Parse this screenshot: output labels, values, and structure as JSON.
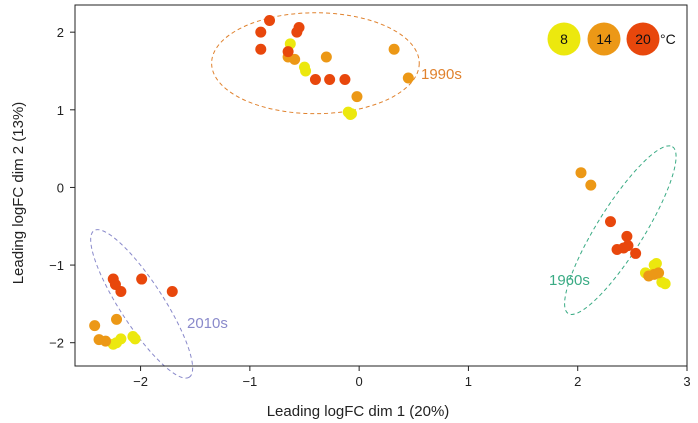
{
  "chart_data": {
    "type": "scatter",
    "xlabel": "Leading logFC dim 1 (20%)",
    "ylabel": "Leading logFC dim 2 (13%)",
    "xlim": [
      -2.6,
      3.0
    ],
    "ylim": [
      -2.3,
      2.35
    ],
    "xticks": [
      -2,
      -1,
      0,
      1,
      2,
      3
    ],
    "xtick_labels": [
      "−2",
      "−1",
      "0",
      "1",
      "2",
      "3"
    ],
    "yticks": [
      -2,
      -1,
      0,
      1,
      2
    ],
    "ytick_labels": [
      "−2",
      "−1",
      "0",
      "1",
      "2"
    ],
    "grid": false,
    "legend": {
      "placement": "top-right",
      "unit": "°C",
      "items": [
        {
          "label": "8",
          "color": "#ece80e"
        },
        {
          "label": "14",
          "color": "#ec9816"
        },
        {
          "label": "20",
          "color": "#e8470c"
        }
      ]
    },
    "colors": {
      "8": "#ece80e",
      "14": "#ec9816",
      "20": "#e8470c"
    },
    "groups": [
      {
        "label": "1990s",
        "color": "#e0822e",
        "ellipse": {
          "cx": -0.4,
          "cy": 1.6,
          "rx": 0.95,
          "ry": 0.65,
          "angle": 0
        }
      },
      {
        "label": "1960s",
        "color": "#3aab84",
        "ellipse": {
          "cx": 2.39,
          "cy": -0.55,
          "rx": 0.9,
          "ry": 0.3,
          "angle": -58
        }
      },
      {
        "label": "2010s",
        "color": "#8a8acb",
        "ellipse": {
          "cx": -1.99,
          "cy": -1.5,
          "rx": 0.8,
          "ry": 0.28,
          "angle": 57
        }
      }
    ],
    "series": [
      {
        "name": "8",
        "points": [
          [
            -0.63,
            1.85
          ],
          [
            -0.5,
            1.55
          ],
          [
            -0.49,
            1.5
          ],
          [
            -0.1,
            0.97
          ],
          [
            -0.08,
            0.94
          ],
          [
            -0.07,
            0.95
          ],
          [
            2.62,
            -1.1
          ],
          [
            2.7,
            -1.0
          ],
          [
            2.72,
            -0.98
          ],
          [
            2.77,
            -1.22
          ],
          [
            2.8,
            -1.24
          ],
          [
            2.67,
            -1.12
          ],
          [
            -2.18,
            -1.95
          ],
          [
            -2.22,
            -2.0
          ],
          [
            -2.05,
            -1.95
          ],
          [
            -2.07,
            -1.92
          ],
          [
            -2.25,
            -2.02
          ]
        ]
      },
      {
        "name": "14",
        "points": [
          [
            -0.65,
            1.68
          ],
          [
            -0.59,
            1.65
          ],
          [
            -0.3,
            1.68
          ],
          [
            0.32,
            1.78
          ],
          [
            0.45,
            1.41
          ],
          [
            -0.02,
            1.17
          ],
          [
            2.03,
            0.19
          ],
          [
            2.12,
            0.03
          ],
          [
            2.65,
            -1.14
          ],
          [
            2.7,
            -1.12
          ],
          [
            2.74,
            -1.1
          ],
          [
            -2.42,
            -1.78
          ],
          [
            -2.38,
            -1.96
          ],
          [
            -2.32,
            -1.98
          ],
          [
            -2.22,
            -1.7
          ]
        ]
      },
      {
        "name": "20",
        "points": [
          [
            -0.9,
            2.0
          ],
          [
            -0.9,
            1.78
          ],
          [
            -0.82,
            2.15
          ],
          [
            -0.65,
            1.75
          ],
          [
            -0.57,
            2.0
          ],
          [
            -0.55,
            2.06
          ],
          [
            -0.4,
            1.39
          ],
          [
            -0.27,
            1.39
          ],
          [
            -0.13,
            1.39
          ],
          [
            2.3,
            -0.44
          ],
          [
            2.45,
            -0.63
          ],
          [
            2.36,
            -0.8
          ],
          [
            2.46,
            -0.75
          ],
          [
            2.42,
            -0.78
          ],
          [
            2.53,
            -0.85
          ],
          [
            -2.25,
            -1.18
          ],
          [
            -2.23,
            -1.25
          ],
          [
            -2.18,
            -1.34
          ],
          [
            -1.99,
            -1.18
          ],
          [
            -1.71,
            -1.34
          ]
        ]
      }
    ]
  }
}
